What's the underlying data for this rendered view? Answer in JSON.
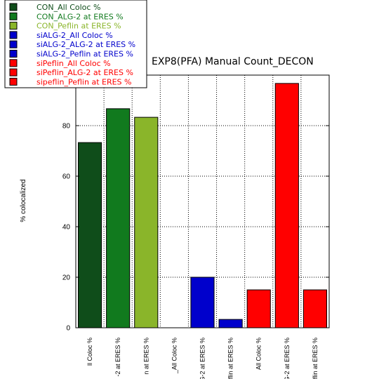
{
  "chart_data": {
    "type": "bar",
    "title": "EXP8(PFA)  Manual  Count_DECON",
    "ylabel": "% colocalized",
    "xlabel": "",
    "ylim": [
      0,
      100
    ],
    "yticks": [
      0,
      20,
      40,
      60,
      80
    ],
    "grid": true,
    "legend_position": "top-left",
    "categories": [
      "CON_All Coloc %",
      "CON_ALG-2 at ERES %",
      "CON_Peflin at ERES %",
      "siALG-2_All Coloc %",
      "siALG-2_ALG-2 at ERES %",
      "siALG-2_Peflin at ERES %",
      "siPeflin_All Coloc %",
      "siPeflin_ALG-2 at ERES %",
      "sipeflin_Peflin at ERES %"
    ],
    "tick_labels": [
      "ll Coloc %",
      "-2 at ERES %",
      "n at ERES %",
      "_All Coloc %",
      ".G-2 at ERES %",
      "eflin at ERES %",
      "All Coloc %",
      "G-2 at ERES %",
      "flin at ERES %"
    ],
    "values": [
      73.3,
      86.7,
      83.3,
      0,
      20,
      3.3,
      15,
      96.7,
      15
    ],
    "colors": [
      "#0f4d1a",
      "#117a1e",
      "#8ab52a",
      "#0000cc",
      "#0000cc",
      "#0000cc",
      "#ff0000",
      "#ff0000",
      "#ff0000"
    ],
    "legend": [
      {
        "label": "CON_All Coloc %",
        "color": "#0f4d1a",
        "text_color": "#0f4d1a"
      },
      {
        "label": "CON_ALG-2 at ERES %",
        "color": "#117a1e",
        "text_color": "#117a1e"
      },
      {
        "label": "CON_Peflin at ERES %",
        "color": "#8ab52a",
        "text_color": "#8ab52a"
      },
      {
        "label": "siALG-2_All Coloc %",
        "color": "#0000cc",
        "text_color": "#0000cc"
      },
      {
        "label": "siALG-2_ALG-2 at ERES %",
        "color": "#0000cc",
        "text_color": "#0000cc"
      },
      {
        "label": "siALG-2_Peflin at ERES %",
        "color": "#0000cc",
        "text_color": "#0000cc"
      },
      {
        "label": "siPeflin_All Coloc %",
        "color": "#ff0000",
        "text_color": "#ff0000"
      },
      {
        "label": "siPeflin_ALG-2 at ERES %",
        "color": "#ff0000",
        "text_color": "#ff0000"
      },
      {
        "label": "sipeflin_Peflin at ERES %",
        "color": "#ff0000",
        "text_color": "#ff0000"
      }
    ]
  }
}
